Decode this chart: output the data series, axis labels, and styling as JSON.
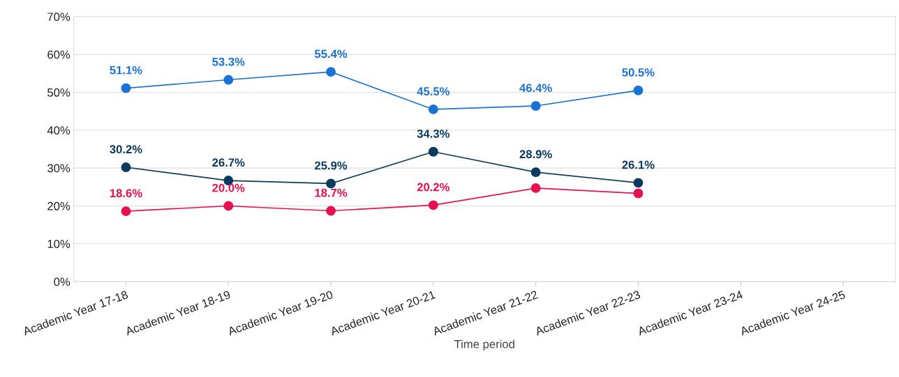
{
  "chart_data": {
    "type": "line",
    "xlabel": "Time period",
    "categories": [
      "Academic Year 17-18",
      "Academic Year 18-19",
      "Academic Year 19-20",
      "Academic Year 20-21",
      "Academic Year 21-22",
      "Academic Year 22-23",
      "Academic Year 23-24",
      "Academic Year 24-25"
    ],
    "series": [
      {
        "color": "#1a73d4",
        "values": [
          51.1,
          53.3,
          55.4,
          45.5,
          46.4,
          50.5,
          null,
          null
        ],
        "value_labels": [
          "51.1%",
          "53.3%",
          "55.4%",
          "45.5%",
          "46.4%",
          "50.5%",
          null,
          null
        ]
      },
      {
        "color": "#0a3b5f",
        "values": [
          30.2,
          26.7,
          25.9,
          34.3,
          28.9,
          26.1,
          null,
          null
        ],
        "value_labels": [
          "30.2%",
          "26.7%",
          "25.9%",
          "34.3%",
          "28.9%",
          "26.1%",
          null,
          null
        ]
      },
      {
        "color": "#e8104f",
        "values": [
          18.6,
          20.0,
          18.7,
          20.2,
          24.7,
          23.3,
          null,
          null
        ],
        "value_labels": [
          "18.6%",
          "20.0%",
          "18.7%",
          "20.2%",
          null,
          null,
          null,
          null
        ]
      }
    ],
    "ylim": [
      0,
      70
    ],
    "yticks": [
      {
        "value": 0,
        "label": "0%"
      },
      {
        "value": 10,
        "label": "10%"
      },
      {
        "value": 20,
        "label": "20%"
      },
      {
        "value": 30,
        "label": "30%"
      },
      {
        "value": 40,
        "label": "40%"
      },
      {
        "value": 50,
        "label": "50%"
      },
      {
        "value": 60,
        "label": "60%"
      },
      {
        "value": 70,
        "label": "70%"
      }
    ],
    "grid": "y",
    "marker": "circle",
    "line_style": "solid"
  }
}
